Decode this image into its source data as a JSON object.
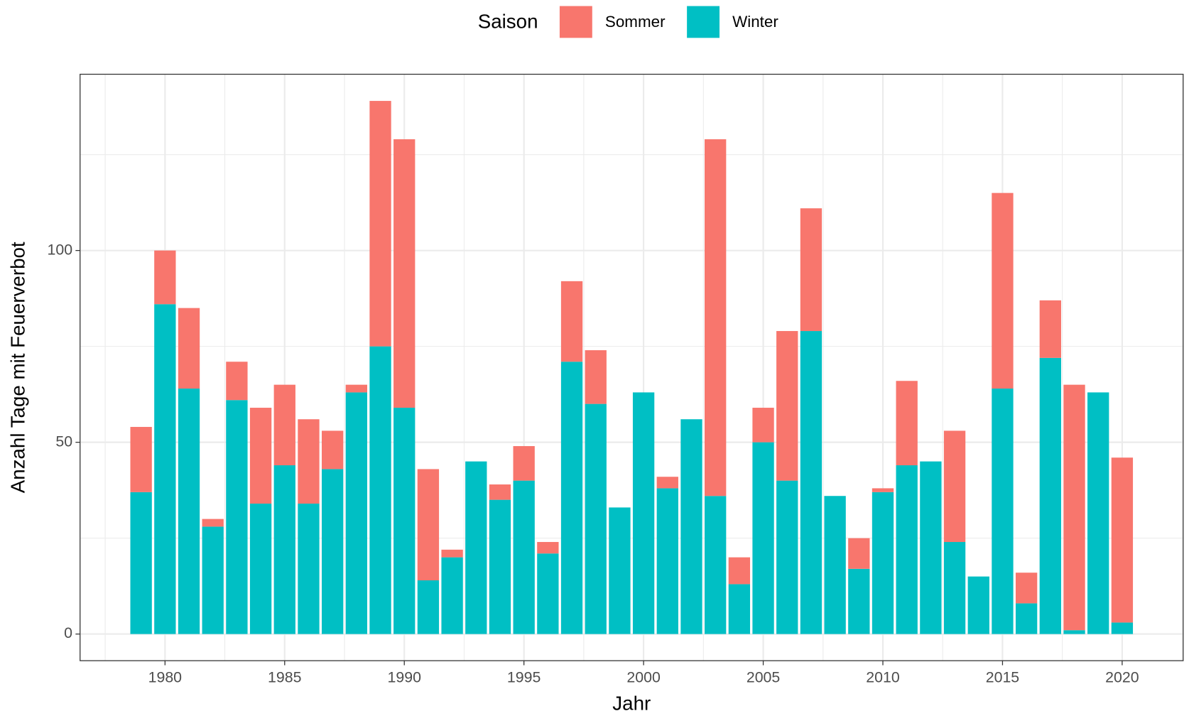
{
  "chart_data": {
    "type": "stacked_bar",
    "x_label": "Jahr",
    "y_label": "Anzahl Tage mit Feuerverbot",
    "legend_title": "Saison",
    "legend_position": "top",
    "x": [
      1979,
      1980,
      1981,
      1982,
      1983,
      1984,
      1985,
      1986,
      1987,
      1988,
      1989,
      1990,
      1991,
      1992,
      1993,
      1994,
      1995,
      1996,
      1997,
      1998,
      1999,
      2000,
      2001,
      2002,
      2003,
      2004,
      2005,
      2006,
      2007,
      2008,
      2009,
      2010,
      2011,
      2012,
      2013,
      2014,
      2015,
      2016,
      2017,
      2018,
      2019,
      2020
    ],
    "series": [
      {
        "name": "Sommer",
        "color": "#F8766D",
        "values": [
          17,
          14,
          21,
          2,
          10,
          25,
          21,
          22,
          10,
          2,
          64,
          70,
          29,
          2,
          0,
          4,
          9,
          3,
          21,
          14,
          0,
          0,
          3,
          0,
          93,
          7,
          9,
          39,
          32,
          0,
          8,
          1,
          22,
          0,
          29,
          0,
          51,
          8,
          15,
          64,
          0,
          43
        ]
      },
      {
        "name": "Winter",
        "color": "#00BFC4",
        "values": [
          37,
          86,
          64,
          28,
          61,
          34,
          44,
          34,
          43,
          63,
          75,
          59,
          14,
          20,
          45,
          35,
          40,
          21,
          71,
          60,
          33,
          63,
          38,
          56,
          36,
          13,
          50,
          40,
          79,
          36,
          17,
          37,
          44,
          45,
          24,
          15,
          64,
          8,
          72,
          1,
          63,
          3
        ]
      }
    ],
    "bar_width": 0.9,
    "xlim": [
      1976.45,
      2022.55
    ],
    "ylim": [
      -6.95,
      145.95
    ],
    "xticks": [
      1980,
      1985,
      1990,
      1995,
      2000,
      2005,
      2010,
      2015,
      2020
    ],
    "yticks": [
      0,
      50,
      100
    ],
    "x_minor_ticks": [
      1977.5,
      1982.5,
      1987.5,
      1992.5,
      1997.5,
      2002.5,
      2007.5,
      2012.5,
      2017.5,
      2022.5
    ],
    "y_minor_ticks": [
      25,
      75,
      125
    ],
    "grid": true
  }
}
